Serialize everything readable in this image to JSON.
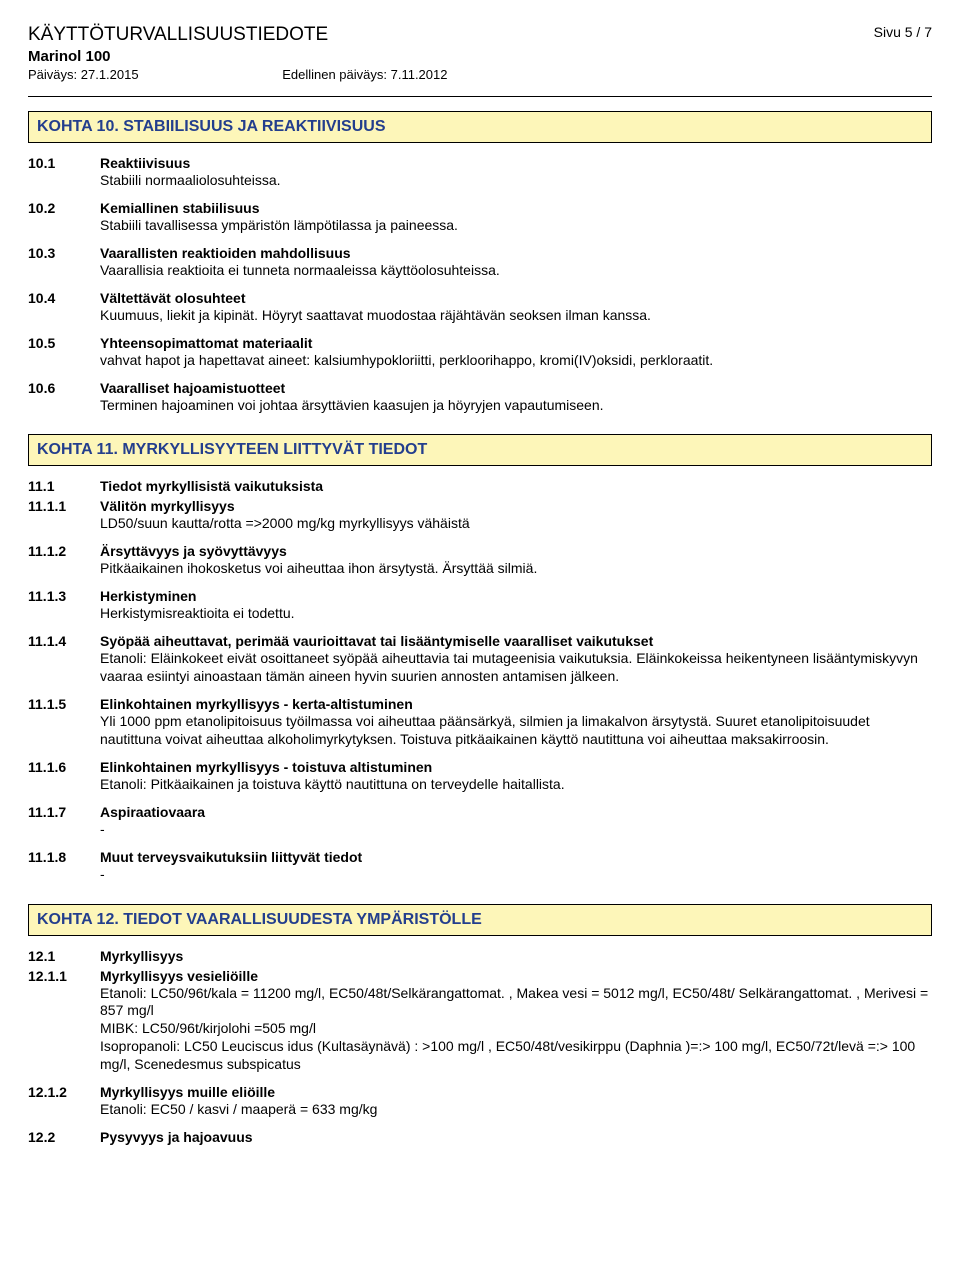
{
  "header": {
    "doc_title": "KÄYTTÖTURVALLISUUSTIEDOTE",
    "product": "Marinol 100",
    "date_label": "Päiväys: 27.1.2015",
    "prev_date_label": "Edellinen päiväys: 7.11.2012",
    "page_label": "Sivu 5 / 7"
  },
  "section10": {
    "banner": "KOHTA 10. STABIILISUUS JA REAKTIIVISUUS",
    "items": [
      {
        "num": "10.1",
        "heading": "Reaktiivisuus",
        "text": "Stabiili normaaliolosuhteissa."
      },
      {
        "num": "10.2",
        "heading": "Kemiallinen stabiilisuus",
        "text": "Stabiili tavallisessa ympäristön lämpötilassa ja paineessa."
      },
      {
        "num": "10.3",
        "heading": "Vaarallisten reaktioiden mahdollisuus",
        "text": "Vaarallisia reaktioita ei tunneta normaaleissa käyttöolosuhteissa."
      },
      {
        "num": "10.4",
        "heading": "Vältettävät olosuhteet",
        "text": "Kuumuus, liekit ja kipinät. Höyryt saattavat muodostaa räjähtävän seoksen ilman kanssa."
      },
      {
        "num": "10.5",
        "heading": "Yhteensopimattomat materiaalit",
        "text": "vahvat hapot ja hapettavat aineet: kalsiumhypokloriitti, perkloorihappo, kromi(IV)oksidi, perkloraatit."
      },
      {
        "num": "10.6",
        "heading": "Vaaralliset hajoamistuotteet",
        "text": "Terminen hajoaminen voi johtaa ärsyttävien kaasujen ja höyryjen vapautumiseen."
      }
    ]
  },
  "section11": {
    "banner": "KOHTA 11. MYRKYLLISYYTEEN LIITTYVÄT TIEDOT",
    "items": [
      {
        "num": "11.1",
        "heading": "Tiedot myrkyllisistä vaikutuksista",
        "text": ""
      },
      {
        "num": "11.1.1",
        "heading": "Välitön myrkyllisyys",
        "text": "LD50/suun kautta/rotta =>2000 mg/kg myrkyllisyys vähäistä"
      },
      {
        "num": "11.1.2",
        "heading": "Ärsyttävyys ja syövyttävyys",
        "text": "Pitkäaikainen ihokosketus voi aiheuttaa ihon ärsytystä. Ärsyttää silmiä."
      },
      {
        "num": "11.1.3",
        "heading": "Herkistyminen",
        "text": "Herkistymisreaktioita ei todettu."
      },
      {
        "num": "11.1.4",
        "heading": "Syöpää aiheuttavat, perimää vaurioittavat tai lisääntymiselle vaaralliset vaikutukset",
        "text": "Etanoli: Eläinkokeet eivät osoittaneet syöpää aiheuttavia tai mutageenisia vaikutuksia. Eläinkokeissa heikentyneen lisääntymiskyvyn vaaraa esiintyi ainoastaan tämän aineen hyvin suurien annosten antamisen jälkeen."
      },
      {
        "num": "11.1.5",
        "heading": "Elinkohtainen myrkyllisyys - kerta-altistuminen",
        "text": "Yli 1000 ppm etanolipitoisuus työilmassa voi aiheuttaa päänsärkyä, silmien ja limakalvon ärsytystä. Suuret etanolipitoisuudet nautittuna voivat aiheuttaa alkoholimyrkytyksen. Toistuva pitkäaikainen käyttö nautittuna voi aiheuttaa maksakirroosin."
      },
      {
        "num": "11.1.6",
        "heading": "Elinkohtainen myrkyllisyys - toistuva altistuminen",
        "text": "Etanoli: Pitkäaikainen ja toistuva käyttö nautittuna on terveydelle haitallista."
      },
      {
        "num": "11.1.7",
        "heading": "Aspiraatiovaara",
        "text": "-"
      },
      {
        "num": "11.1.8",
        "heading": "Muut terveysvaikutuksiin liittyvät tiedot",
        "text": "-"
      }
    ]
  },
  "section12": {
    "banner": "KOHTA 12. TIEDOT VAARALLISUUDESTA YMPÄRISTÖLLE",
    "items": [
      {
        "num": "12.1",
        "heading": "Myrkyllisyys",
        "text": ""
      },
      {
        "num": "12.1.1",
        "heading": "Myrkyllisyys vesieliöille",
        "text": "Etanoli: LC50/96t/kala = 11200 mg/l, EC50/48t/Selkärangattomat. , Makea vesi = 5012 mg/l, EC50/48t/ Selkärangattomat. , Merivesi = 857 mg/l\nMIBK: LC50/96t/kirjolohi =505 mg/l\nIsopropanoli: LC50 Leuciscus idus (Kultasäynävä) : >100 mg/l , EC50/48t/vesikirppu (Daphnia )=:> 100 mg/l, EC50/72t/levä =:> 100 mg/l, Scenedesmus subspicatus"
      },
      {
        "num": "12.1.2",
        "heading": "Myrkyllisyys muille eliöille",
        "text": "Etanoli: EC50 / kasvi / maaperä = 633 mg/kg"
      },
      {
        "num": "12.2",
        "heading": "Pysyvyys ja hajoavuus",
        "text": ""
      }
    ]
  },
  "colors": {
    "banner_bg": "#fdf6b9",
    "banner_text": "#233e8d",
    "border": "#000000",
    "background": "#ffffff"
  }
}
